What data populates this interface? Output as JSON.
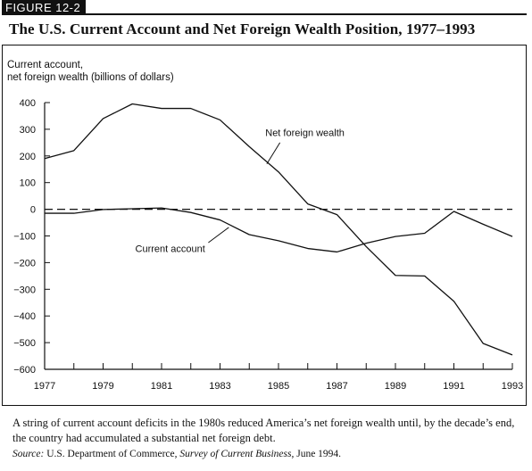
{
  "figure": {
    "tag": "FIGURE 12-2",
    "title": "The U.S. Current Account and Net Foreign Wealth Position, 1977–1993"
  },
  "caption": {
    "text": "A string of current account deficits in the 1980s reduced America’s net foreign wealth until, by the decade’s end, the country had accumulated a substantial net foreign debt.",
    "source_label": "Source:",
    "source_pre": "U.S. Department of Commerce,",
    "source_pub": "Survey of Current Business",
    "source_post": ", June 1994."
  },
  "chart_data": {
    "type": "line",
    "ylabel_line1": "Current account,",
    "ylabel_line2": "net foreign wealth (billions of dollars)",
    "xlabel": "",
    "x": [
      1977,
      1978,
      1979,
      1980,
      1981,
      1982,
      1983,
      1984,
      1985,
      1986,
      1987,
      1988,
      1989,
      1990,
      1991,
      1992,
      1993
    ],
    "xlim": [
      1977,
      1993
    ],
    "ylim": [
      -600,
      400
    ],
    "x_ticks": [
      1977,
      1979,
      1981,
      1983,
      1985,
      1987,
      1989,
      1991,
      1993
    ],
    "y_ticks": [
      400,
      300,
      200,
      100,
      0,
      -100,
      -200,
      -300,
      -400,
      -500,
      -600
    ],
    "zero_line": "dashed",
    "grid": false,
    "series": [
      {
        "name": "Net foreign wealth",
        "values": [
          190,
          220,
          340,
          395,
          378,
          378,
          335,
          235,
          140,
          20,
          -20,
          -140,
          -248,
          -250,
          -345,
          -503,
          -546
        ]
      },
      {
        "name": "Current account",
        "values": [
          -15,
          -15,
          -1,
          2,
          5,
          -12,
          -40,
          -95,
          -118,
          -147,
          -160,
          -127,
          -102,
          -90,
          -8,
          -56,
          -102
        ]
      }
    ],
    "labels": {
      "nfw": "Net foreign wealth",
      "ca": "Current account"
    }
  }
}
